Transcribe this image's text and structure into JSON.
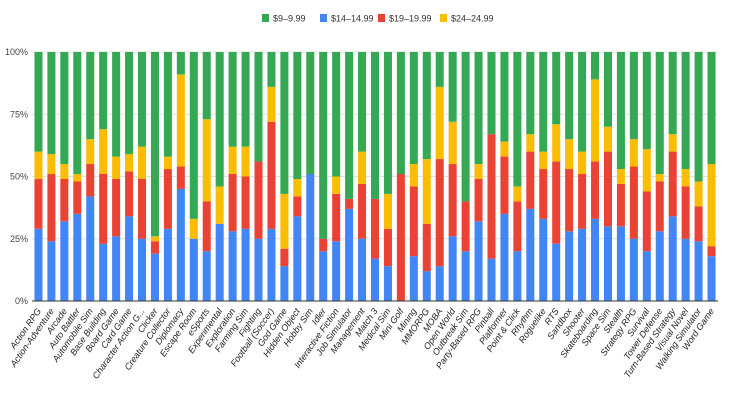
{
  "chart_data": {
    "type": "bar",
    "stacked": "percent",
    "title": "",
    "xlabel": "",
    "ylabel": "",
    "ylim": [
      0,
      100
    ],
    "y_ticks": [
      "0%",
      "25%",
      "50%",
      "75%",
      "100%"
    ],
    "grid": true,
    "legend_position": "top",
    "categories": [
      "Action RPG",
      "Action-Adventure",
      "Arcade",
      "Auto Battler",
      "Automobile Sim",
      "Base Building",
      "Board Game",
      "Card Game",
      "Character Action G...",
      "Clicker",
      "Creature Collector",
      "Diplomacy",
      "Escape Room",
      "eSports",
      "Experimental",
      "Exploration",
      "Farming Sim",
      "Fighting",
      "Football (Soccer)",
      "God Game",
      "Hidden Object",
      "Hobby Sim",
      "Idler",
      "Interactive Fiction",
      "Job Simulator",
      "Management",
      "Match 3",
      "Medical Sim",
      "Mini Golf",
      "Mining",
      "MMORPG",
      "MOBA",
      "Open World",
      "Outbreak Sim",
      "Party-Based RPG",
      "Pinball",
      "Platformer",
      "Point & Click",
      "Rhythm",
      "Roguelike",
      "RTS",
      "Sandbox",
      "Shooter",
      "Skateboarding",
      "Space Sim",
      "Stealth",
      "Strategy RPG",
      "Survival",
      "Tower Defense",
      "Turn-Based Strategy",
      "Visual Novel",
      "Walking Simulator",
      "Word Game"
    ],
    "series": [
      {
        "name": "$14–14.99",
        "color": "#4285f4",
        "values": [
          29,
          24,
          32,
          35,
          42,
          23,
          26,
          34,
          25,
          19,
          29,
          45,
          25,
          20,
          31,
          28,
          29,
          25,
          29,
          14,
          34,
          51,
          20,
          24,
          37,
          25,
          17,
          14,
          0,
          18,
          12,
          14,
          26,
          20,
          32,
          17,
          35,
          20,
          37,
          33,
          23,
          28,
          29,
          33,
          30,
          30,
          25,
          20,
          28,
          34,
          25,
          24,
          18
        ]
      },
      {
        "name": "$19–19.99",
        "color": "#ea4335",
        "values": [
          20,
          27,
          17,
          13,
          13,
          28,
          23,
          18,
          24,
          5,
          24,
          9,
          0,
          20,
          0,
          23,
          21,
          31,
          43,
          7,
          8,
          0,
          5,
          19,
          4,
          22,
          24,
          15,
          51,
          28,
          19,
          43,
          29,
          20,
          17,
          50,
          23,
          20,
          23,
          20,
          33,
          25,
          22,
          23,
          30,
          17,
          29,
          24,
          20,
          26,
          21,
          14,
          4
        ]
      },
      {
        "name": "$24–24.99",
        "color": "#fbbc04",
        "values": [
          11,
          8,
          6,
          3,
          10,
          18,
          9,
          7,
          13,
          2,
          5,
          37,
          8,
          33,
          15,
          11,
          12,
          0,
          14,
          22,
          7,
          0,
          0,
          7,
          0,
          13,
          0,
          14,
          0,
          9,
          26,
          29,
          17,
          0,
          6,
          0,
          6,
          6,
          7,
          7,
          15,
          12,
          9,
          33,
          10,
          6,
          11,
          17,
          3,
          7,
          7,
          10,
          33
        ]
      },
      {
        "name": "$9–9.99",
        "color": "#34a853",
        "values": [
          40,
          41,
          45,
          49,
          35,
          31,
          42,
          41,
          38,
          74,
          42,
          9,
          67,
          27,
          54,
          38,
          38,
          44,
          14,
          57,
          51,
          49,
          75,
          50,
          59,
          40,
          59,
          57,
          49,
          45,
          43,
          14,
          28,
          60,
          45,
          33,
          36,
          54,
          33,
          40,
          29,
          35,
          40,
          11,
          30,
          47,
          35,
          39,
          49,
          33,
          47,
          52,
          45
        ]
      }
    ],
    "legend": [
      {
        "label": "$9–9.99",
        "color": "#34a853"
      },
      {
        "label": "$14–14.99",
        "color": "#4285f4"
      },
      {
        "label": "$19–19.99",
        "color": "#ea4335"
      },
      {
        "label": "$24–24.99",
        "color": "#fbbc04"
      }
    ]
  }
}
